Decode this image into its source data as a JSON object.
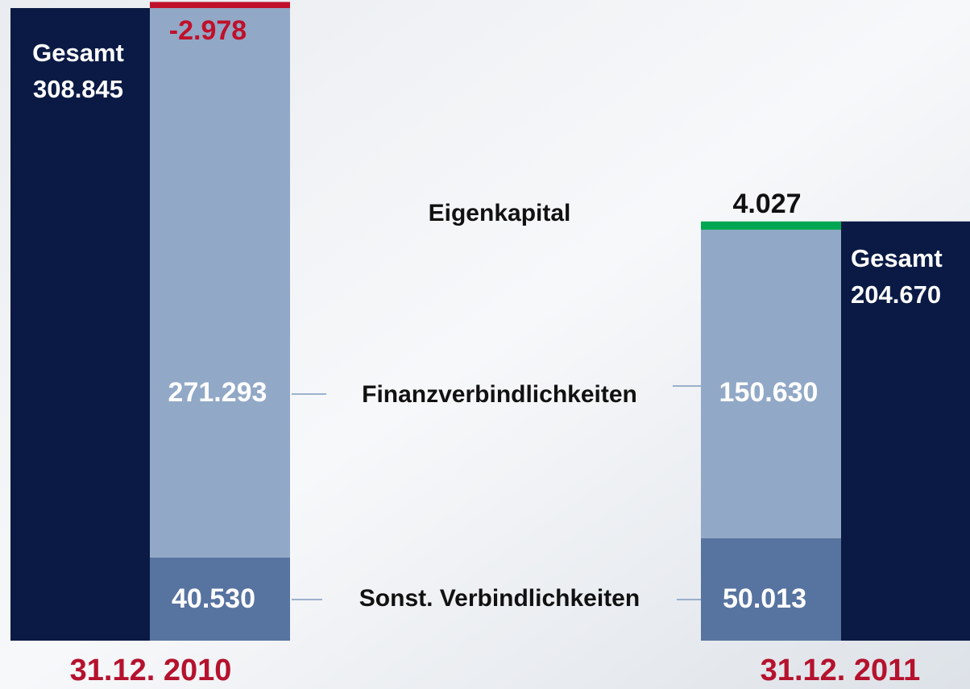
{
  "chart_data": {
    "type": "stacked_bar",
    "categories": [
      "31.12. 2010",
      "31.12. 2011"
    ],
    "total": {
      "name": "Gesamt",
      "color": "#0a1a44",
      "values": [
        308845,
        204670
      ],
      "value_labels": [
        "308.845",
        "204.670"
      ]
    },
    "series": [
      {
        "name": "Sonst. Verbindlichkeiten",
        "color": "#5773a0",
        "values": [
          40530,
          50013
        ],
        "value_labels": [
          "40.530",
          "50.013"
        ]
      },
      {
        "name": "Finanzverbindlichkeiten",
        "color": "#91a8c6",
        "values": [
          271293,
          150630
        ],
        "value_labels": [
          "271.293",
          "150.630"
        ]
      },
      {
        "name": "Eigenkapital",
        "colors": [
          "#c0102a",
          "#00a651"
        ],
        "values": [
          -2978,
          4027
        ],
        "value_labels": [
          "-2.978",
          "4.027"
        ]
      }
    ]
  }
}
